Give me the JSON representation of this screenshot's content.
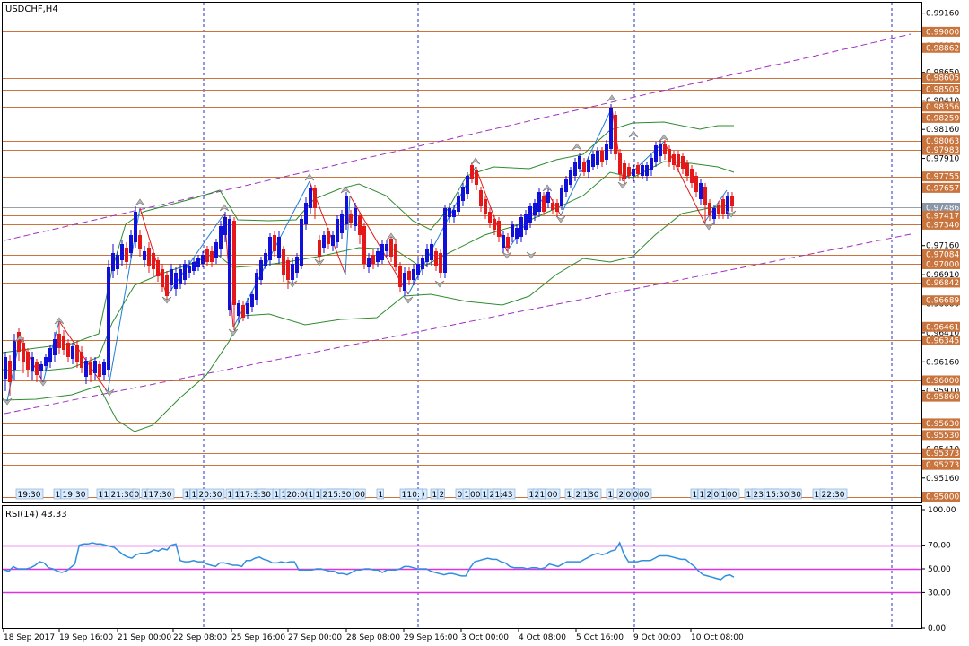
{
  "chart_data": [
    {
      "type": "candlestick",
      "title": "USDCHF,H4",
      "ylim": [
        0.9495,
        0.9925
      ],
      "price_ticks": [
        "0.99160",
        "0.98880",
        "0.98650",
        "0.98410",
        "0.98160",
        "0.97910",
        "0.97160",
        "0.96910",
        "0.96660",
        "0.96410",
        "0.96160",
        "0.95910",
        "0.95410",
        "0.95160"
      ],
      "levels": [
        "0.99000",
        "0.98862",
        "0.98605",
        "0.98505",
        "0.98356",
        "0.98259",
        "0.98063",
        "0.97983",
        "0.97755",
        "0.97657",
        "0.97486",
        "0.97417",
        "0.97340",
        "0.97084",
        "0.97000",
        "0.96842",
        "0.96689",
        "0.96461",
        "0.96345",
        "0.96000",
        "0.95860",
        "0.95630",
        "0.95530",
        "0.95373",
        "0.95273",
        "0.95000"
      ],
      "current_level": "0.97486",
      "x_labels": [
        "18 Sep 2017",
        "19 Sep 16:00",
        "21 Sep 00:00",
        "22 Sep 08:00",
        "25 Sep 16:00",
        "27 Sep 00:00",
        "28 Sep 08:00",
        "29 Sep 16:00",
        "3 Oct 00:00",
        "4 Oct 08:00",
        "5 Oct 16:00",
        "9 Oct 00:00",
        "10 Oct 08:00"
      ],
      "time_stamps": [
        "19:30",
        "1",
        "19:30",
        "1",
        "1",
        "21:30",
        "0",
        "1",
        "17:30",
        "1",
        "1",
        "20:30",
        "1",
        "1",
        "17:30",
        ":30",
        "1",
        "1",
        "20:00",
        "1",
        "1",
        "22:00",
        "15:30",
        "00",
        "1",
        "18:00",
        "10:",
        "1",
        "2",
        "03:00",
        "1",
        "1",
        "22:43",
        "1",
        "1",
        "22:00",
        "1",
        "1",
        "23:30",
        "1",
        "1",
        "2",
        "03:00",
        "0",
        "1",
        "1",
        "2",
        "03:00",
        "1",
        "17",
        "23:30",
        "15:30",
        "30",
        "10",
        "22:30"
      ],
      "colors": {
        "bull": "#1010d8",
        "bear": "#e41818",
        "level_line": "#c8743c",
        "level_box": "#c8743c",
        "channel": "#a030c0",
        "bands": "#2e8b2e",
        "zigzag": "#e41818",
        "zigzag_up": "#1f7fd6",
        "vline": "#2030d0"
      }
    },
    {
      "type": "line",
      "title": "RSI(14) 43.33",
      "ylim": [
        0,
        100
      ],
      "y_ticks": [
        "100.00",
        "70.00",
        "50.00",
        "30.00",
        "0.00"
      ],
      "levels": [
        70,
        50,
        30
      ],
      "series": [
        {
          "values": [
            49,
            48,
            52,
            50,
            50,
            50,
            51,
            53,
            56,
            55,
            51,
            50,
            48,
            47,
            48,
            51,
            54,
            70,
            71,
            71,
            72,
            71,
            71,
            70,
            69,
            68,
            65,
            62,
            60,
            59,
            62,
            63,
            63,
            64,
            66,
            65,
            67,
            66,
            70,
            71,
            57,
            56,
            56,
            57,
            56,
            56,
            54,
            53,
            52,
            55,
            55,
            54,
            53,
            53,
            52,
            57,
            57,
            59,
            60,
            58,
            57,
            55,
            55,
            56,
            55,
            56,
            56,
            49,
            49,
            49,
            49,
            50,
            50,
            49,
            48,
            48,
            46,
            46,
            45,
            47,
            49,
            49,
            50,
            50,
            49,
            49,
            47,
            49,
            49,
            49,
            50,
            52,
            52,
            51,
            50,
            50,
            50,
            48,
            47,
            46,
            45,
            46,
            46,
            45,
            44,
            44,
            51,
            56,
            57,
            58,
            59,
            58,
            58,
            56,
            55,
            52,
            51,
            51,
            51,
            50,
            51,
            51,
            50,
            51,
            54,
            53,
            52,
            54,
            56,
            56,
            56,
            56,
            58,
            60,
            62,
            63,
            62,
            63,
            65,
            66,
            72,
            62,
            56,
            56,
            56,
            57,
            57,
            57,
            59,
            61,
            61,
            61,
            60,
            59,
            58,
            58,
            55,
            52,
            48,
            45,
            44,
            43,
            42,
            41,
            44,
            45,
            43
          ]
        }
      ]
    }
  ]
}
